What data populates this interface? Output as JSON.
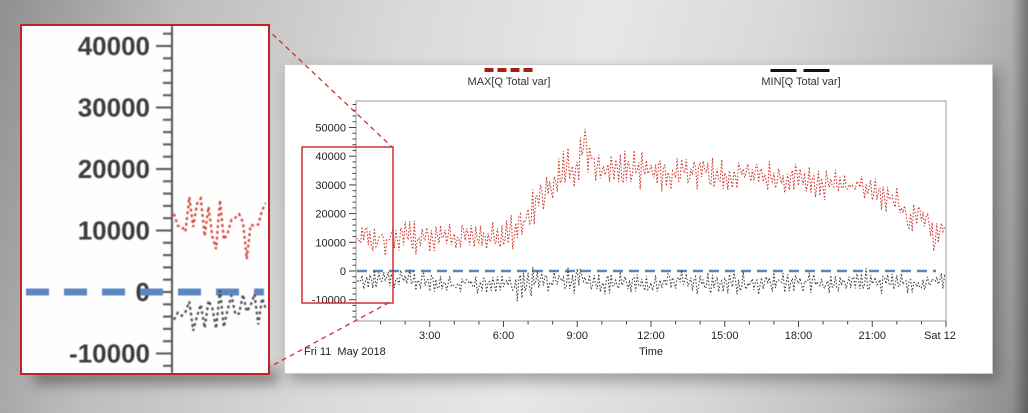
{
  "legend": {
    "max_label": "MAX[Q Total var]",
    "min_label": "MIN[Q Total var]",
    "max_color": "#a81d14",
    "min_color": "#111111"
  },
  "footer": {
    "date_label": "Fri 11  May 2018",
    "time_axis_label": "Time"
  },
  "colors": {
    "max_series": "#cb2a20",
    "min_series": "#333333",
    "zero_line": "#5b87c0",
    "annotation_red": "#cc2222",
    "axis_text": "#222222",
    "ruler": "#555555"
  },
  "chart_data": {
    "type": "line",
    "title": "",
    "xlabel": "Time",
    "ylabel": "",
    "x_range_hours": [
      0,
      24
    ],
    "y_range": [
      -17400,
      59200
    ],
    "grid": false,
    "legend_position": "top",
    "x_axis": {
      "major_ticks": [
        {
          "t": 3,
          "label": "3:00"
        },
        {
          "t": 6,
          "label": "6:00"
        },
        {
          "t": 9,
          "label": "9:00"
        },
        {
          "t": 12,
          "label": "12:00"
        },
        {
          "t": 15,
          "label": "15:00"
        },
        {
          "t": 18,
          "label": "18:00"
        },
        {
          "t": 21,
          "label": "21:00"
        },
        {
          "t": 24,
          "label": "Sat 12"
        }
      ],
      "minor_step_hours": 1,
      "start_label": "Fri 11  May 2018"
    },
    "y_axis": {
      "major_ticks": [
        {
          "v": 50000,
          "label": "50000"
        },
        {
          "v": 40000,
          "label": "40000"
        },
        {
          "v": 30000,
          "label": "30000"
        },
        {
          "v": 20000,
          "label": "20000"
        },
        {
          "v": 10000,
          "label": "10000"
        },
        {
          "v": 0,
          "label": "0"
        },
        {
          "v": -10000,
          "label": "-10000"
        }
      ],
      "minor_step": 2000
    },
    "zero_line": {
      "value": 0,
      "color": "#5b87c0",
      "style": "dashed"
    },
    "points_per_hour": 16,
    "series": [
      {
        "name": "MAX[Q Total var]",
        "color": "#cb2a20",
        "style": "dotted",
        "seed": 20180511,
        "midline": [
          [
            0,
            11000
          ],
          [
            1,
            11000
          ],
          [
            2,
            11500
          ],
          [
            3,
            11000
          ],
          [
            4,
            11500
          ],
          [
            5,
            11000
          ],
          [
            6,
            12000
          ],
          [
            6.5,
            14000
          ],
          [
            7,
            19000
          ],
          [
            7.5,
            26000
          ],
          [
            8,
            31000
          ],
          [
            8.5,
            35000
          ],
          [
            9,
            38000
          ],
          [
            9.25,
            43000
          ],
          [
            9.5,
            38000
          ],
          [
            10,
            37000
          ],
          [
            11,
            36000
          ],
          [
            12,
            35000
          ],
          [
            13,
            34000
          ],
          [
            14,
            35000
          ],
          [
            15,
            33000
          ],
          [
            16,
            34000
          ],
          [
            17,
            33000
          ],
          [
            18,
            32000
          ],
          [
            19,
            30000
          ],
          [
            20,
            30000
          ],
          [
            21,
            28000
          ],
          [
            21.5,
            26000
          ],
          [
            22,
            24000
          ],
          [
            22.5,
            17000
          ],
          [
            23,
            21000
          ],
          [
            23.5,
            13000
          ],
          [
            24,
            15000
          ]
        ],
        "amp": [
          [
            0,
            6500
          ],
          [
            6,
            6500
          ],
          [
            7,
            8000
          ],
          [
            8,
            7000
          ],
          [
            9,
            8000
          ],
          [
            9.25,
            12000
          ],
          [
            9.5,
            8000
          ],
          [
            12,
            7000
          ],
          [
            15,
            6000
          ],
          [
            18,
            6000
          ],
          [
            20,
            5000
          ],
          [
            21,
            5000
          ],
          [
            22,
            6000
          ],
          [
            22.5,
            7500
          ],
          [
            23,
            5000
          ],
          [
            23.5,
            8000
          ],
          [
            24,
            5000
          ]
        ],
        "extremes": {
          "peak_value": 55000,
          "peak_time_hours": 9.2,
          "low_before_rise": 4000
        }
      },
      {
        "name": "MIN[Q Total var]",
        "color": "#333333",
        "style": "dotted",
        "seed": 911,
        "midline": [
          [
            0,
            -3500
          ],
          [
            2,
            -3000
          ],
          [
            4,
            -4500
          ],
          [
            6,
            -4000
          ],
          [
            7,
            -5500
          ],
          [
            8,
            -3500
          ],
          [
            9,
            -3000
          ],
          [
            10,
            -4500
          ],
          [
            11,
            -4000
          ],
          [
            12,
            -4500
          ],
          [
            13,
            -3500
          ],
          [
            14,
            -4500
          ],
          [
            15,
            -4000
          ],
          [
            16,
            -4500
          ],
          [
            17,
            -3500
          ],
          [
            18,
            -4000
          ],
          [
            19,
            -4500
          ],
          [
            20,
            -4000
          ],
          [
            21,
            -3500
          ],
          [
            22,
            -4000
          ],
          [
            23,
            -4000
          ],
          [
            24,
            -3000
          ]
        ],
        "amp": [
          [
            0,
            3200
          ],
          [
            2,
            4200
          ],
          [
            4,
            3500
          ],
          [
            6,
            4000
          ],
          [
            7,
            7000
          ],
          [
            8,
            4000
          ],
          [
            9,
            5000
          ],
          [
            10,
            4000
          ],
          [
            12,
            4000
          ],
          [
            13,
            4500
          ],
          [
            15,
            4000
          ],
          [
            17,
            4500
          ],
          [
            19,
            3500
          ],
          [
            21,
            4800
          ],
          [
            22,
            3500
          ],
          [
            23,
            4000
          ],
          [
            24,
            3500
          ]
        ],
        "extremes": {
          "deepest_dip": -14000,
          "dip_time_hours": 7.0,
          "spikes_above_zero": 4000
        }
      }
    ],
    "inset": {
      "shown_time_range_hours": [
        0,
        1.5
      ],
      "y_ticks": [
        {
          "v": 40000,
          "label": "40000"
        },
        {
          "v": 30000,
          "label": "30000"
        },
        {
          "v": 20000,
          "label": "20000"
        },
        {
          "v": 10000,
          "label": "10000"
        },
        {
          "v": 0,
          "label": "0"
        },
        {
          "v": -10000,
          "label": "-10000"
        }
      ],
      "minor_step": 2000
    }
  }
}
